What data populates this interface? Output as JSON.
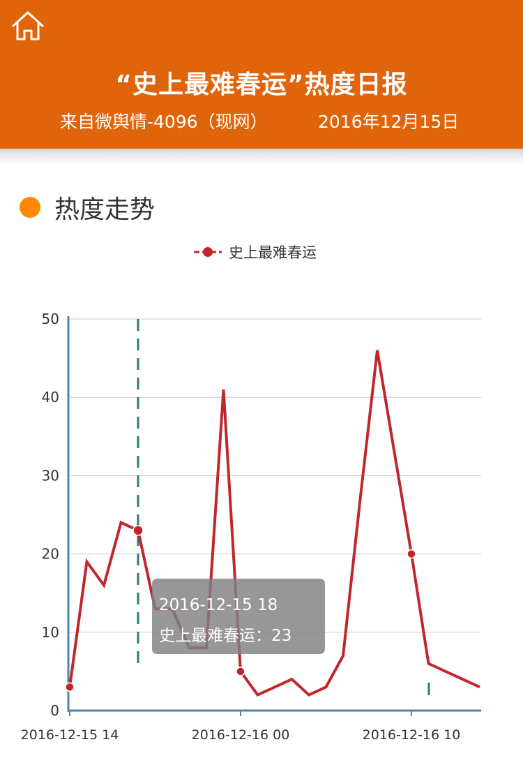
{
  "header": {
    "home_icon": "home-icon",
    "title": "“史上最难春运”热度日报",
    "source": "来自微舆情-4096（现网）",
    "date": "2016年12月15日",
    "background": "#e0640a"
  },
  "section": {
    "title": "热度走势",
    "dot_color": "#ff8a00"
  },
  "chart_data": {
    "type": "line",
    "ylim": [
      0,
      50
    ],
    "y_ticks": [
      0,
      10,
      20,
      30,
      40,
      50
    ],
    "x_tick_labels": [
      "2016-12-15 14",
      "2016-12-16 00",
      "2016-12-16 10"
    ],
    "x_tick_hours": [
      0,
      10,
      20
    ],
    "series": [
      {
        "name": "史上最难春运",
        "color": "#c0272d",
        "x_hours": [
          0,
          1,
          2,
          3,
          4,
          5,
          6,
          7,
          8,
          9,
          10,
          11,
          12,
          13,
          14,
          15,
          16,
          17,
          18,
          19,
          20,
          21,
          22,
          23,
          24
        ],
        "values": [
          3,
          19,
          16,
          24,
          23,
          13,
          13,
          8,
          8,
          41,
          5,
          2,
          3,
          4,
          2,
          3,
          7,
          27,
          46,
          33,
          20,
          6,
          5,
          4,
          3
        ],
        "highlight_points_hours": [
          0,
          4,
          10,
          20
        ]
      }
    ],
    "crosshair_hour": 4,
    "tooltip": {
      "time": "2016-12-15 18",
      "label": "史上最难春运：23"
    }
  }
}
